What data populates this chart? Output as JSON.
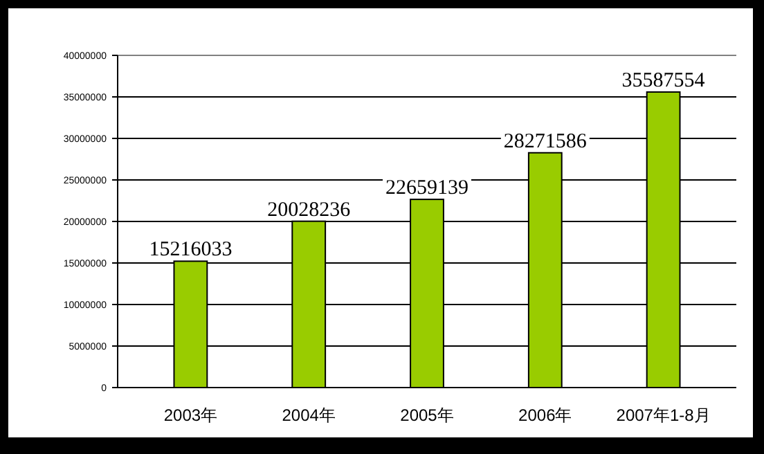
{
  "chart_data": {
    "type": "bar",
    "categories": [
      "2003年",
      "2004年",
      "2005年",
      "2006年",
      "2007年1-8月"
    ],
    "values": [
      15216033,
      20028236,
      22659139,
      28271586,
      35587554
    ],
    "color": "#99cc00",
    "ylim": [
      0,
      40000000
    ],
    "yticks": [
      0,
      5000000,
      10000000,
      15000000,
      20000000,
      25000000,
      30000000,
      35000000,
      40000000
    ],
    "grid": "y",
    "data_labels": true
  }
}
